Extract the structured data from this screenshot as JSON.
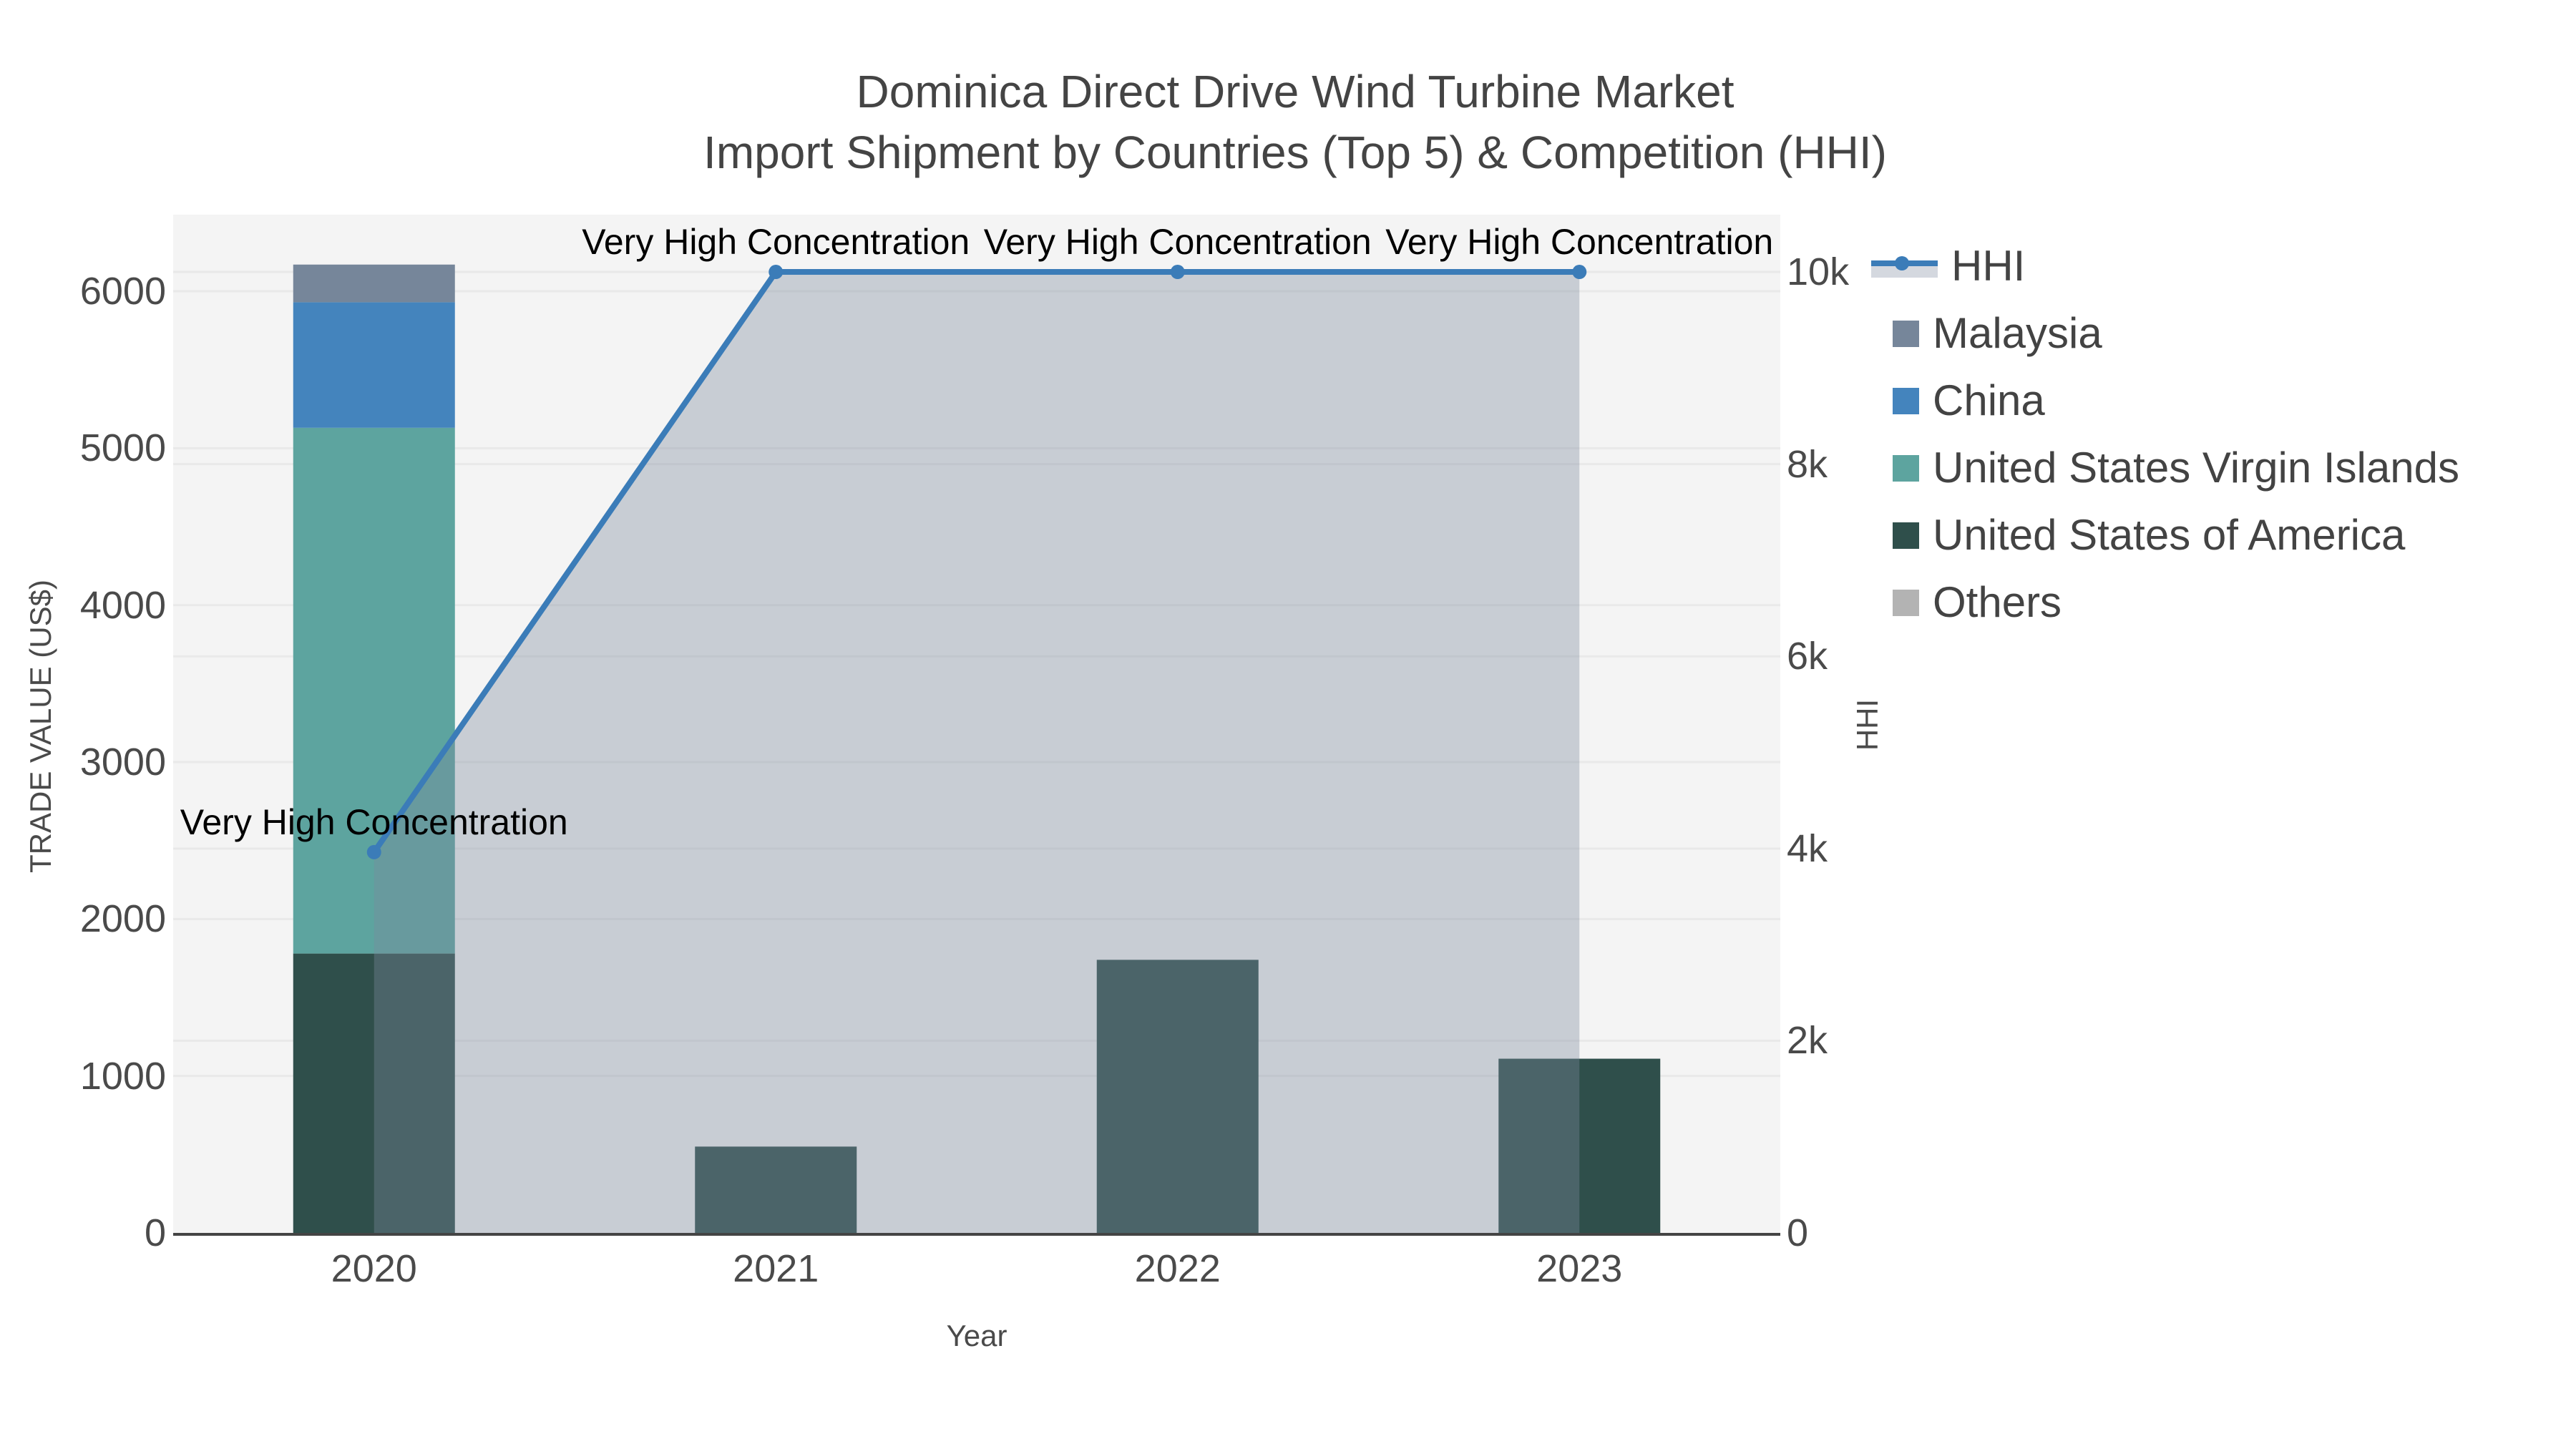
{
  "title": {
    "line1": "Dominica Direct Drive Wind Turbine Market",
    "line2": "Import Shipment by Countries (Top 5) & Competition (HHI)"
  },
  "axes": {
    "x": {
      "title": "Year",
      "tick_labels": [
        "2020",
        "2021",
        "2022",
        "2023"
      ]
    },
    "y_left": {
      "title": "TRADE VALUE (US$)",
      "tick_labels": [
        "0",
        "1000",
        "2000",
        "3000",
        "4000",
        "5000",
        "6000"
      ],
      "tick_values": [
        0,
        1000,
        2000,
        3000,
        4000,
        5000,
        6000
      ]
    },
    "y_right": {
      "title": "HHI",
      "tick_labels": [
        "0",
        "2k",
        "4k",
        "6k",
        "8k",
        "10k"
      ],
      "tick_values": [
        0,
        2000,
        4000,
        6000,
        8000,
        10000
      ]
    }
  },
  "legend": {
    "items": [
      {
        "label": "HHI",
        "type": "line",
        "color": "#3b7cb8"
      },
      {
        "label": "Malaysia",
        "type": "swatch",
        "color": "#76869a"
      },
      {
        "label": "China",
        "type": "swatch",
        "color": "#4484bd"
      },
      {
        "label": "United States Virgin Islands",
        "type": "swatch",
        "color": "#5da49f"
      },
      {
        "label": "United States of America",
        "type": "swatch",
        "color": "#2f4f4b"
      },
      {
        "label": "Others",
        "type": "swatch",
        "color": "#b3b3b3"
      }
    ]
  },
  "chart_data": {
    "type": "bar",
    "title": "Dominica Direct Drive Wind Turbine Market — Import Shipment by Countries (Top 5) & Competition (HHI)",
    "xlabel": "Year",
    "ylabel": "TRADE VALUE (US$)",
    "ylabel_right": "HHI",
    "categories": [
      "2020",
      "2021",
      "2022",
      "2023"
    ],
    "ylim_left": [
      0,
      6488
    ],
    "ylim_right": [
      0,
      10596
    ],
    "grid": true,
    "legend_position": "right",
    "bar_mode": "stacked",
    "series": [
      {
        "name": "United States of America",
        "type": "bar",
        "color": "#2f4f4b",
        "values": [
          1780,
          550,
          1740,
          1110
        ]
      },
      {
        "name": "United States Virgin Islands",
        "type": "bar",
        "color": "#5da49f",
        "values": [
          3350,
          0,
          0,
          0
        ]
      },
      {
        "name": "China",
        "type": "bar",
        "color": "#4484bd",
        "values": [
          800,
          0,
          0,
          0
        ]
      },
      {
        "name": "Malaysia",
        "type": "bar",
        "color": "#76869a",
        "values": [
          240,
          0,
          0,
          0
        ]
      },
      {
        "name": "Others",
        "type": "bar",
        "color": "#b3b3b3",
        "values": [
          0,
          0,
          0,
          0
        ]
      },
      {
        "name": "HHI",
        "type": "line",
        "axis": "right",
        "color": "#3b7cb8",
        "fill_color": "rgba(124,138,158,0.37)",
        "values": [
          3962,
          10000,
          10000,
          10000
        ]
      }
    ],
    "annotations": [
      {
        "text": "Very High Concentration",
        "x": "2020",
        "y": 3962,
        "yaxis": "right"
      },
      {
        "text": "Very High Concentration",
        "x": "2021",
        "y": 10000,
        "yaxis": "right"
      },
      {
        "text": "Very High Concentration",
        "x": "2022",
        "y": 10000,
        "yaxis": "right"
      },
      {
        "text": "Very High Concentration",
        "x": "2023",
        "y": 10000,
        "yaxis": "right"
      }
    ]
  }
}
